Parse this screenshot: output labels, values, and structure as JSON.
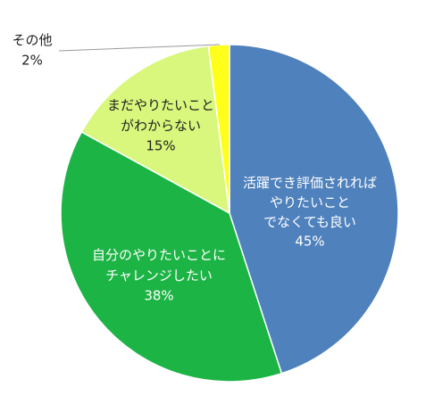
{
  "chart_data": {
    "type": "pie",
    "categories": [
      "活躍でき評価されれば\nやりたいこと\nでなくても良い",
      "自分のやりたいことに\nチャレンジしたい",
      "まだやりたいこと\nがわからない",
      "その他"
    ],
    "values": [
      45,
      38,
      15,
      2
    ],
    "value_labels": [
      "45%",
      "38%",
      "15%",
      "2%"
    ],
    "colors": [
      "#4f81bd",
      "#1db446",
      "#d8f77c",
      "#ffff1a"
    ]
  }
}
